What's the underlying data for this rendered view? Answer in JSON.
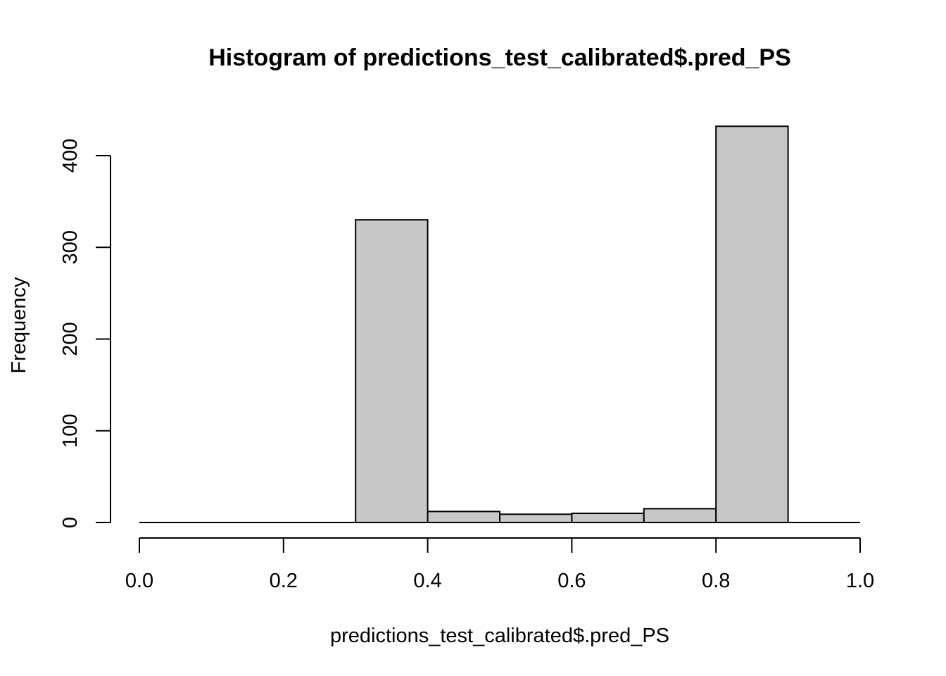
{
  "chart_data": {
    "type": "bar",
    "title": "Histogram of predictions_test_calibrated$.pred_PS",
    "xlabel": "predictions_test_calibrated$.pred_PS",
    "ylabel": "Frequency",
    "bin_edges": [
      0.0,
      0.1,
      0.2,
      0.3,
      0.4,
      0.5,
      0.6,
      0.7,
      0.8,
      0.9,
      1.0
    ],
    "values": [
      0,
      0,
      0,
      330,
      12,
      9,
      10,
      15,
      432,
      0
    ],
    "xlim": [
      0.0,
      1.0
    ],
    "ylim": [
      0,
      432
    ],
    "x_ticks": [
      0.0,
      0.2,
      0.4,
      0.6,
      0.8,
      1.0
    ],
    "x_tick_labels": [
      "0.0",
      "0.2",
      "0.4",
      "0.6",
      "0.8",
      "1.0"
    ],
    "y_ticks": [
      0,
      100,
      200,
      300,
      400
    ],
    "y_tick_labels": [
      "0",
      "100",
      "200",
      "300",
      "400"
    ],
    "bar_fill": "#c8c8c8",
    "grid": false
  }
}
